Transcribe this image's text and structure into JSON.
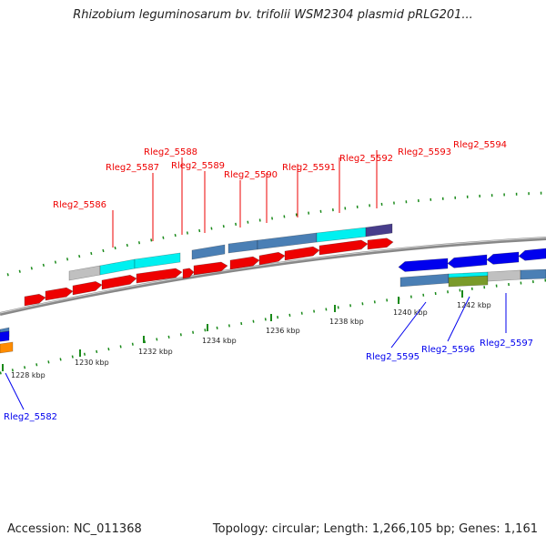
{
  "header": {
    "title": "Rhizobium leguminosarum bv. trifolii WSM2304 plasmid pRLG201..."
  },
  "footer": {
    "accession": "Accession: NC_011368",
    "summary": "Topology: circular; Length: 1,266,105 bp; Genes: 1,161"
  },
  "colors": {
    "forward_gene": "#ee0000",
    "reverse_gene": "#0000ee",
    "cog_steelblue": "#4a7fb5",
    "cog_cyan": "#00f0f0",
    "cog_gray": "#c0c0c0",
    "cog_purple": "#483d8b",
    "cog_olive": "#7a9a2a",
    "cog_orange": "#ff8c00",
    "tick_green": "#1a8a1a",
    "backbone": "#888888"
  },
  "scale": {
    "labels": [
      "1228 kbp",
      "1230 kbp",
      "1232 kbp",
      "1234 kbp",
      "1236 kbp",
      "1238 kbp",
      "1240 kbp",
      "1242 kbp"
    ]
  },
  "genes": {
    "forward": [
      "Rleg2_5586",
      "Rleg2_5587",
      "Rleg2_5588",
      "Rleg2_5589",
      "Rleg2_5590",
      "Rleg2_5591",
      "Rleg2_5592",
      "Rleg2_5593",
      "Rleg2_5594"
    ],
    "reverse": [
      "Rleg2_5582",
      "Rleg2_5595",
      "Rleg2_5596",
      "Rleg2_5597"
    ]
  }
}
